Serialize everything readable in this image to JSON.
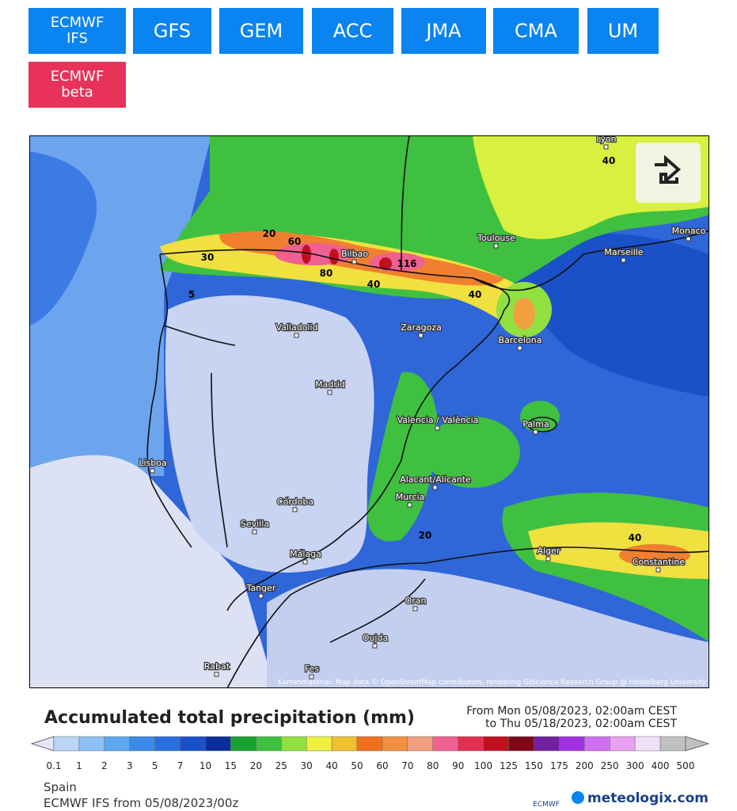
{
  "nav": {
    "buttons": [
      {
        "label": "ECMWF IFS",
        "color": "#0a84f0"
      },
      {
        "label": "GFS",
        "color": "#0a84f0"
      },
      {
        "label": "GEM",
        "color": "#0a84f0"
      },
      {
        "label": "ACC",
        "color": "#0a84f0"
      },
      {
        "label": "JMA",
        "color": "#0a84f0"
      },
      {
        "label": "CMA",
        "color": "#0a84f0"
      },
      {
        "label": "UM",
        "color": "#0a84f0"
      },
      {
        "label": "ECMWF beta",
        "color": "#e8325a"
      }
    ]
  },
  "map": {
    "cities": [
      "Lyon",
      "Monaco",
      "Toulouse",
      "Marseille",
      "Bilbao",
      "Valladolid",
      "Zaragoza",
      "Barcelona",
      "Madrid",
      "Valencia / València",
      "Palma",
      "Lisboa",
      "Alacant/Alicante",
      "Murcia",
      "Córdoba",
      "Sevilla",
      "Málaga",
      "Tanger",
      "Alger",
      "Constantine",
      "Oran",
      "Oujda",
      "Rabat",
      "Fes"
    ],
    "contour_labels": [
      "116",
      "60",
      "80",
      "40",
      "20",
      "30",
      "5",
      "40",
      "40",
      "20",
      "40"
    ],
    "attribution": "Kartenmaterial: Map data © OpenStreetMap contributors, rendering GIScience Research Group @ Heidelberg University"
  },
  "legend": {
    "title": "Accumulated total precipitation (mm)",
    "period_from": "From Mon 05/08/2023, 02:00am CEST",
    "period_to": "to Thu 05/18/2023, 02:00am CEST",
    "steps": [
      {
        "label": "0.1",
        "color": "#e4e6f6"
      },
      {
        "label": "1",
        "color": "#b9d6f8"
      },
      {
        "label": "2",
        "color": "#8ec0f5"
      },
      {
        "label": "3",
        "color": "#5ea6f0"
      },
      {
        "label": "5",
        "color": "#3a8ae8"
      },
      {
        "label": "7",
        "color": "#2a6fe0"
      },
      {
        "label": "10",
        "color": "#1a50c8"
      },
      {
        "label": "15",
        "color": "#0a2f9a"
      },
      {
        "label": "20",
        "color": "#18a030"
      },
      {
        "label": "25",
        "color": "#40c040"
      },
      {
        "label": "30",
        "color": "#90e040"
      },
      {
        "label": "40",
        "color": "#f0f040"
      },
      {
        "label": "50",
        "color": "#f0c030"
      },
      {
        "label": "60",
        "color": "#f07020"
      },
      {
        "label": "70",
        "color": "#f09040"
      },
      {
        "label": "80",
        "color": "#f0a080"
      },
      {
        "label": "90",
        "color": "#f06090"
      },
      {
        "label": "100",
        "color": "#e03050"
      },
      {
        "label": "125",
        "color": "#c01020"
      },
      {
        "label": "150",
        "color": "#800818"
      },
      {
        "label": "175",
        "color": "#7020a0"
      },
      {
        "label": "200",
        "color": "#a030e0"
      },
      {
        "label": "250",
        "color": "#d070f0"
      },
      {
        "label": "300",
        "color": "#e8a0f0"
      },
      {
        "label": "400",
        "color": "#f0e0f8"
      },
      {
        "label": "500",
        "color": "#c0c0c0"
      }
    ]
  },
  "footer": {
    "region": "Spain",
    "model_run": "ECMWF IFS from 05/08/2023/00z",
    "ecmwf": "ECMWF",
    "brand": "meteologix.com"
  }
}
